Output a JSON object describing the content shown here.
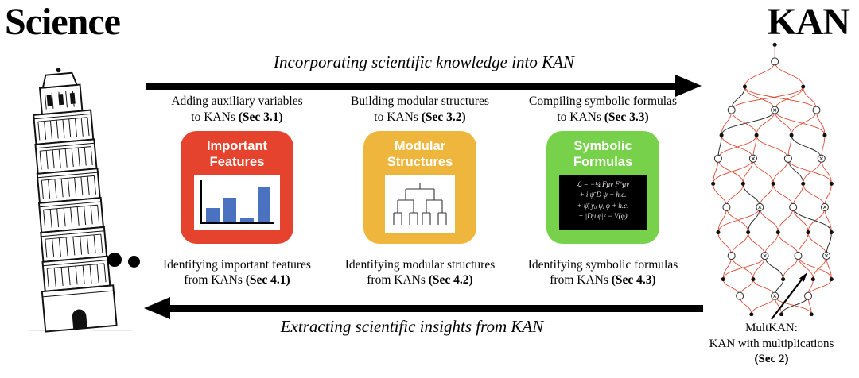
{
  "titles": {
    "science": "Science",
    "kan": "KAN"
  },
  "arrows": {
    "top_label": "Incorporating scientific knowledge into KAN",
    "bottom_label": "Extracting scientific insights from KAN"
  },
  "columns": [
    {
      "top_line1": "Adding auxiliary variables",
      "top_line2": "to KANs",
      "top_sec": "(Sec 3.1)",
      "box_title": "Important\nFeatures",
      "bottom_line1": "Identifying important features",
      "bottom_line2": "from KANs",
      "bottom_sec": "(Sec 4.1)",
      "chart": {
        "type": "bar",
        "values": [
          0.33,
          0.58,
          0.12,
          0.85
        ],
        "bar_color": "#4a72c0"
      }
    },
    {
      "top_line1": "Building modular structures",
      "top_line2": "to KANs",
      "top_sec": "(Sec 3.2)",
      "box_title": "Modular\nStructures",
      "bottom_line1": "Identifying modular structures",
      "bottom_line2": "from KANs",
      "bottom_sec": "(Sec 4.2)"
    },
    {
      "top_line1": "Compiling symbolic formulas",
      "top_line2": "to KANs",
      "top_sec": "(Sec 3.3)",
      "box_title": "Symbolic\nFormulas",
      "bottom_line1": "Identifying symbolic formulas",
      "bottom_line2": "from KANs",
      "bottom_sec": "(Sec 4.3)",
      "formulas": [
        "ℒ = −¼ Fμν F^μν",
        "+ i ψ̄ D ψ + h.c.",
        "+ ψ̄ᵢ yᵢⱼ ψⱼ φ + h.c.",
        "+ |Dμ φ|² − V(φ)"
      ]
    }
  ],
  "colors": {
    "box_red": "#e5432d",
    "box_yellow": "#efb63e",
    "box_green": "#77d14a",
    "edge_red": "#d9432b"
  },
  "multkan": {
    "line1": "MultKAN:",
    "line2": "KAN with multiplications",
    "sec": "(Sec 2)"
  }
}
